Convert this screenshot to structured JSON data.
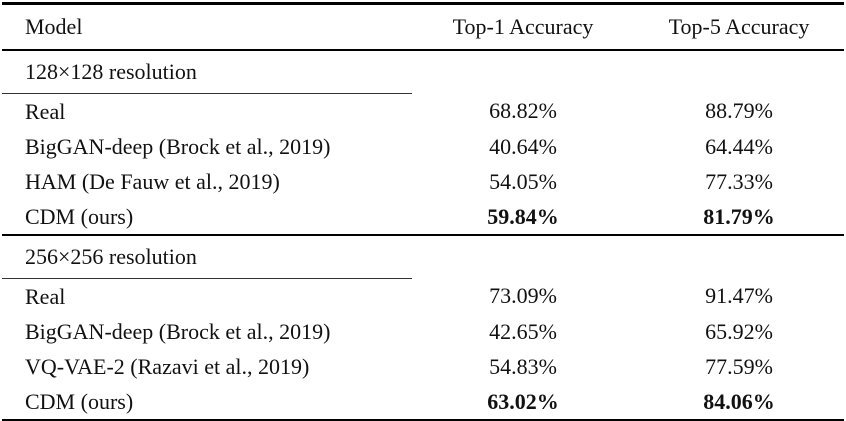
{
  "table": {
    "columns": [
      "Model",
      "Top-1 Accuracy",
      "Top-5 Accuracy"
    ],
    "sections": [
      {
        "header": "128×128 resolution",
        "rows": [
          {
            "model": "Real",
            "top1": "68.82%",
            "top5": "88.79%",
            "bold": false
          },
          {
            "model": "BigGAN-deep (Brock et al., 2019)",
            "top1": "40.64%",
            "top5": "64.44%",
            "bold": false
          },
          {
            "model": "HAM (De Fauw et al., 2019)",
            "top1": "54.05%",
            "top5": "77.33%",
            "bold": false
          },
          {
            "model": "CDM (ours)",
            "top1": "59.84%",
            "top5": "81.79%",
            "bold": true
          }
        ]
      },
      {
        "header": "256×256 resolution",
        "rows": [
          {
            "model": "Real",
            "top1": "73.09%",
            "top5": "91.47%",
            "bold": false
          },
          {
            "model": "BigGAN-deep (Brock et al., 2019)",
            "top1": "42.65%",
            "top5": "65.92%",
            "bold": false
          },
          {
            "model": "VQ-VAE-2 (Razavi et al., 2019)",
            "top1": "54.83%",
            "top5": "77.59%",
            "bold": false
          },
          {
            "model": "CDM (ours)",
            "top1": "63.02%",
            "top5": "84.06%",
            "bold": true
          }
        ]
      }
    ]
  },
  "colors": {
    "background": "#ffffff",
    "text": "#111111",
    "rule_heavy": "#000000",
    "rule_light": "#333333"
  }
}
